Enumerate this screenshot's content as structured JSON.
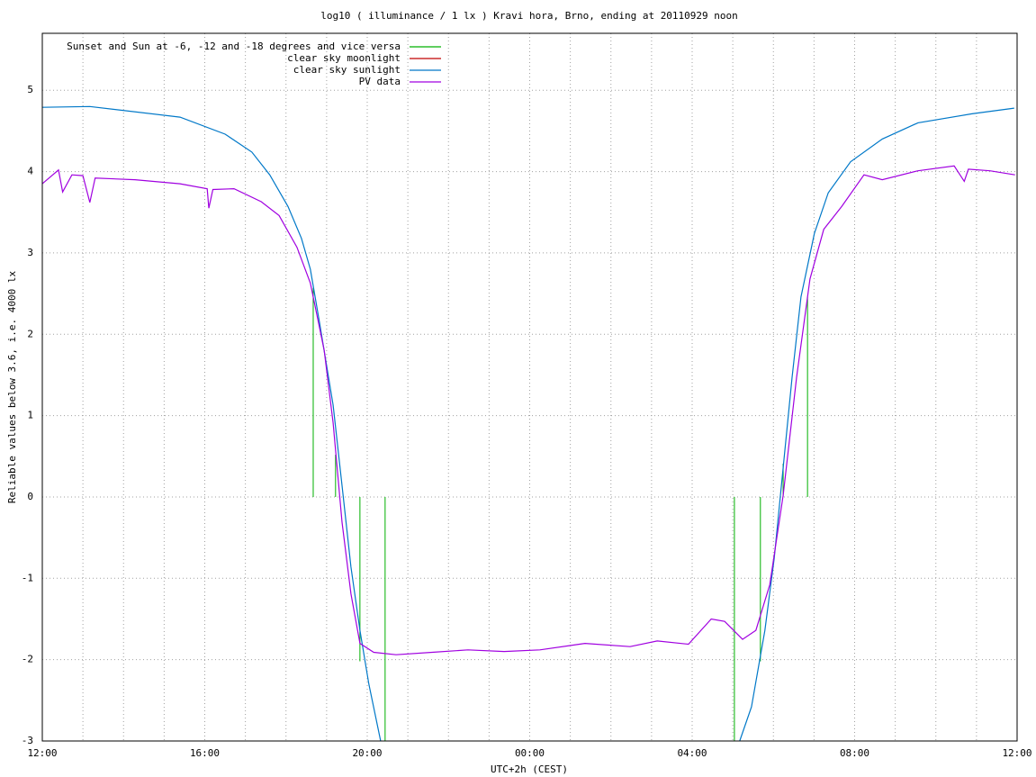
{
  "chart_data": {
    "type": "line",
    "title": "log10 ( illuminance / 1 lx ) Kravi hora, Brno, ending at 20110929 noon",
    "xlabel": "UTC+2h (CEST)",
    "ylabel": "Reliable values below 3.6, i.e. 4000 lx",
    "xlim": [
      0,
      24
    ],
    "ylim": [
      -3,
      5.7
    ],
    "xticks": [
      {
        "value": 0,
        "label": "12:00"
      },
      {
        "value": 4,
        "label": "16:00"
      },
      {
        "value": 8,
        "label": "20:00"
      },
      {
        "value": 12,
        "label": "00:00"
      },
      {
        "value": 16,
        "label": "04:00"
      },
      {
        "value": 20,
        "label": "08:00"
      },
      {
        "value": 24,
        "label": "12:00"
      }
    ],
    "x_minor_ticks": [
      1,
      2,
      3,
      5,
      6,
      7,
      9,
      10,
      11,
      13,
      14,
      15,
      17,
      18,
      19,
      21,
      22,
      23
    ],
    "yticks": [
      -3,
      -2,
      -1,
      0,
      1,
      2,
      3,
      4,
      5
    ],
    "grid": true,
    "legend": "upper left",
    "series": [
      {
        "name": "Sunset and Sun at -6, -12 and -18 degrees and vice versa",
        "color": "#00b000",
        "style": "impulses",
        "x": [
          6.67,
          7.22,
          7.82,
          8.44,
          17.04,
          17.68,
          18.24,
          18.84
        ],
        "values": [
          2.57,
          0.52,
          -2.02,
          -3,
          -3,
          -2.02,
          0.41,
          2.46
        ]
      },
      {
        "name": "clear sky moonlight",
        "color": "#c00000",
        "style": "line",
        "x": [],
        "values": []
      },
      {
        "name": "clear sky sunlight",
        "color": "#0078c8",
        "style": "line",
        "x": [
          0,
          1.17,
          3.39,
          4.5,
          5.16,
          5.6,
          6.05,
          6.38,
          6.6,
          6.83,
          7.16,
          7.38,
          7.6,
          7.82,
          8.04,
          8.33,
          12,
          17.17,
          17.46,
          17.79,
          18.02,
          18.24,
          18.46,
          18.68,
          19.01,
          19.35,
          19.9,
          20.68,
          21.56,
          22.89,
          23.93
        ],
        "values": [
          4.79,
          4.8,
          4.67,
          4.46,
          4.24,
          3.96,
          3.57,
          3.18,
          2.8,
          2.13,
          1.13,
          0.14,
          -0.86,
          -1.64,
          -2.3,
          -3,
          null,
          -3,
          -2.58,
          -1.64,
          -0.75,
          0.36,
          1.47,
          2.46,
          3.24,
          3.74,
          4.12,
          4.4,
          4.6,
          4.71,
          4.78
        ]
      },
      {
        "name": "PV data",
        "color": "#a000e0",
        "style": "line",
        "x": [
          0,
          0.4,
          0.5,
          0.73,
          1.0,
          1.17,
          1.3,
          2.28,
          3.39,
          4.06,
          4.1,
          4.2,
          4.72,
          5.39,
          5.83,
          6.27,
          6.6,
          6.94,
          7.16,
          7.38,
          7.6,
          7.82,
          8.16,
          8.71,
          9.6,
          10.48,
          11.37,
          12.25,
          13.36,
          14.47,
          15.14,
          15.91,
          16.47,
          16.8,
          17.24,
          17.57,
          17.91,
          18.24,
          18.57,
          18.9,
          19.24,
          19.68,
          20.23,
          20.68,
          21.56,
          22.45,
          22.7,
          22.8,
          23.33,
          23.95
        ],
        "values": [
          3.85,
          4.02,
          3.75,
          3.96,
          3.95,
          3.62,
          3.92,
          3.9,
          3.85,
          3.79,
          3.55,
          3.78,
          3.79,
          3.63,
          3.46,
          3.07,
          2.63,
          1.8,
          0.91,
          -0.31,
          -1.19,
          -1.8,
          -1.91,
          -1.94,
          -1.91,
          -1.88,
          -1.9,
          -1.88,
          -1.8,
          -1.84,
          -1.77,
          -1.81,
          -1.5,
          -1.53,
          -1.75,
          -1.64,
          -1.08,
          0.02,
          1.47,
          2.68,
          3.29,
          3.57,
          3.96,
          3.9,
          4.01,
          4.07,
          3.88,
          4.03,
          4.01,
          3.96
        ]
      }
    ]
  }
}
